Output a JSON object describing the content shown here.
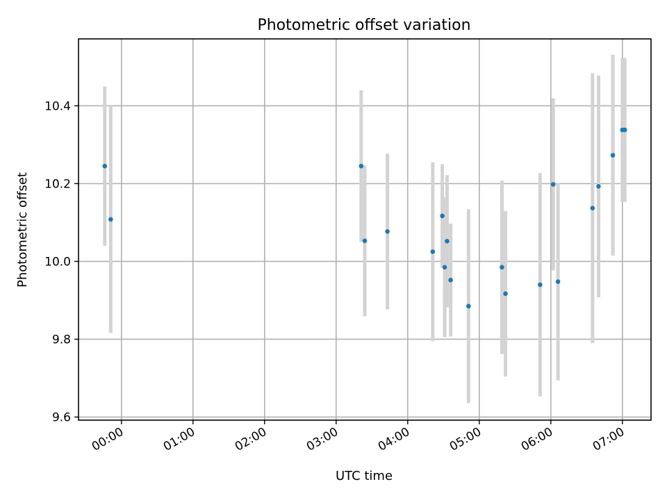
{
  "chart_data": {
    "type": "scatter",
    "title": "Photometric offset variation",
    "xlabel": "UTC time",
    "ylabel": "Photometric offset",
    "x_tick_labels": [
      "00:00",
      "01:00",
      "02:00",
      "03:00",
      "04:00",
      "05:00",
      "06:00",
      "07:00"
    ],
    "x_tick_hours": [
      0,
      1,
      2,
      3,
      4,
      5,
      6,
      7
    ],
    "y_ticks": [
      9.6,
      9.8,
      10.0,
      10.2,
      10.4
    ],
    "y_tick_labels": [
      "9.6",
      "9.8",
      "10.0",
      "10.2",
      "10.4"
    ],
    "xlim": [
      "23:24",
      "07:24"
    ],
    "ylim": [
      9.592,
      10.572
    ],
    "grid": true,
    "colors": {
      "point": "#1f77b4",
      "errorbar": "#d3d3d3",
      "grid": "#b0b0b0"
    },
    "series": [
      {
        "points": [
          {
            "x": "23:46",
            "y": 10.245,
            "err": 0.205
          },
          {
            "x": "23:51",
            "y": 10.108,
            "err": 0.292
          },
          {
            "x": "03:21",
            "y": 10.245,
            "err": 0.195
          },
          {
            "x": "03:24",
            "y": 10.053,
            "err": 0.194
          },
          {
            "x": "03:43",
            "y": 10.077,
            "err": 0.2
          },
          {
            "x": "04:21",
            "y": 10.025,
            "err": 0.23
          },
          {
            "x": "04:29",
            "y": 10.117,
            "err": 0.133
          },
          {
            "x": "04:31",
            "y": 9.985,
            "err": 0.18
          },
          {
            "x": "04:33",
            "y": 10.052,
            "err": 0.17
          },
          {
            "x": "04:36",
            "y": 9.952,
            "err": 0.145
          },
          {
            "x": "04:51",
            "y": 9.885,
            "err": 0.249
          },
          {
            "x": "05:19",
            "y": 9.985,
            "err": 0.223
          },
          {
            "x": "05:22",
            "y": 9.917,
            "err": 0.213
          },
          {
            "x": "05:51",
            "y": 9.94,
            "err": 0.287
          },
          {
            "x": "06:02",
            "y": 10.198,
            "err": 0.221
          },
          {
            "x": "06:06",
            "y": 9.948,
            "err": 0.254
          },
          {
            "x": "06:35",
            "y": 10.137,
            "err": 0.347
          },
          {
            "x": "06:40",
            "y": 10.193,
            "err": 0.285
          },
          {
            "x": "06:52",
            "y": 10.273,
            "err": 0.258
          },
          {
            "x": "07:00",
            "y": 10.338,
            "err": 0.184
          },
          {
            "x": "07:02",
            "y": 10.338,
            "err": 0.185
          }
        ]
      }
    ]
  }
}
